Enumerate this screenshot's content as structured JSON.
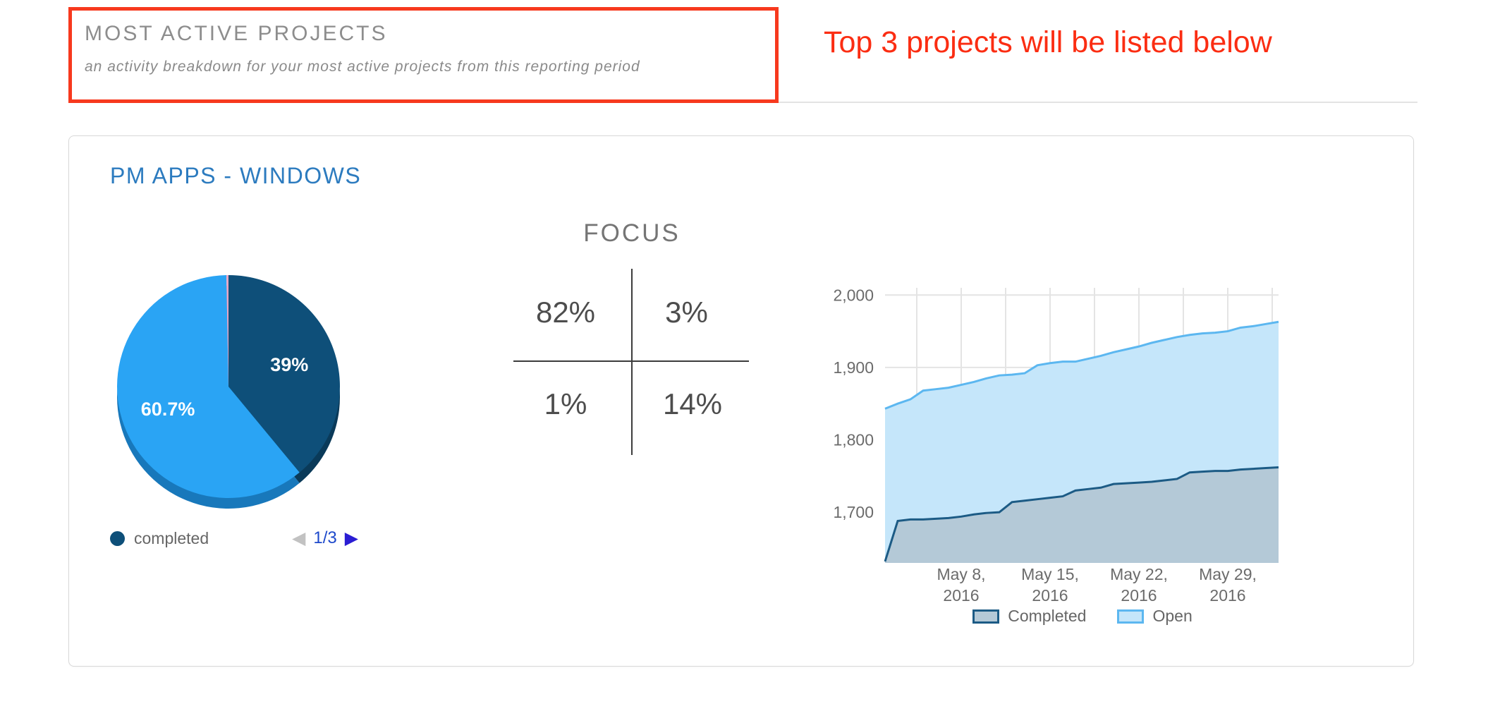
{
  "header": {
    "title": "MOST ACTIVE PROJECTS",
    "subtitle": "an activity breakdown for your most active projects from this reporting period",
    "annotation": "Top 3 projects will be listed below"
  },
  "colors": {
    "annotation_red": "#f7391e",
    "project_title_blue": "#2c7bbf",
    "pie_dark_blue": "#0e4f79",
    "pie_light_blue": "#2aa4f4",
    "pie_sliver_pink": "#eba6c3",
    "completed_line": "#1c5b85",
    "completed_fill": "#b4c9d7",
    "open_line": "#5cb7f0",
    "open_fill": "#c5e6fa",
    "pager_next_blue": "#2a1dd3"
  },
  "card": {
    "title": "PM APPS - WINDOWS",
    "pager": {
      "prev": "◀",
      "text": "1/3",
      "next": "▶"
    },
    "focus": {
      "title": "FOCUS",
      "top_left": "82%",
      "top_right": "3%",
      "bottom_left": "1%",
      "bottom_right": "14%"
    }
  },
  "chart_data": [
    {
      "type": "pie",
      "start_angle_deg": -90,
      "label_color": "#ffffff",
      "pagination": "1/3",
      "slices": [
        {
          "label": "completed",
          "value": 39,
          "display": "39%",
          "color": "#0e4f79",
          "rim_color": "#0a3a59"
        },
        {
          "label": "",
          "value": 60.7,
          "display": "60.7%",
          "color": "#2aa4f4",
          "rim_color": "#1878bb"
        },
        {
          "label": "",
          "value": 0.3,
          "display": "",
          "color": "#eba6c3",
          "rim_color": "#c77da6"
        }
      ]
    },
    {
      "type": "area",
      "stacked": true,
      "grid": true,
      "legend_position": "bottom",
      "days": [
        0,
        1,
        2,
        3,
        4,
        5,
        6,
        7,
        8,
        9,
        10,
        11,
        12,
        13,
        14,
        15,
        16,
        17,
        18,
        19,
        20,
        21,
        22,
        23,
        24,
        25,
        26,
        27,
        28,
        29,
        30,
        31
      ],
      "x_ticks": [
        {
          "day": 6,
          "line1": "May 8,",
          "line2": "2016"
        },
        {
          "day": 13,
          "line1": "May 15,",
          "line2": "2016"
        },
        {
          "day": 20,
          "line1": "May 22,",
          "line2": "2016"
        },
        {
          "day": 27,
          "line1": "May 29,",
          "line2": "2016"
        }
      ],
      "grid_days": [
        2.5,
        6,
        9.5,
        13,
        16.5,
        20,
        23.5,
        27,
        30.5
      ],
      "ylim": [
        1630,
        2010
      ],
      "y_ticks": [
        1700,
        1800,
        1900,
        2000
      ],
      "y_tick_labels": [
        "1,700",
        "1,800",
        "1,900",
        "2,000"
      ],
      "series": [
        {
          "name": "Completed",
          "line_color": "#1c5b85",
          "fill_color": "#b4c9d7",
          "values": [
            1632,
            1688,
            1690,
            1690,
            1691,
            1692,
            1694,
            1697,
            1699,
            1700,
            1714,
            1716,
            1718,
            1720,
            1722,
            1730,
            1732,
            1734,
            1739,
            1740,
            1741,
            1742,
            1744,
            1746,
            1755,
            1756,
            1757,
            1757,
            1759,
            1760,
            1761,
            1762
          ]
        },
        {
          "name": "Open",
          "line_color": "#5cb7f0",
          "fill_color": "#c5e6fa",
          "values": [
            1843,
            1850,
            1856,
            1868,
            1870,
            1872,
            1876,
            1880,
            1885,
            1889,
            1890,
            1892,
            1903,
            1906,
            1908,
            1908,
            1912,
            1916,
            1921,
            1925,
            1929,
            1934,
            1938,
            1942,
            1945,
            1947,
            1948,
            1950,
            1955,
            1957,
            1960,
            1963
          ],
          "note": "values are stacked totals (Completed + Open)"
        }
      ]
    }
  ]
}
